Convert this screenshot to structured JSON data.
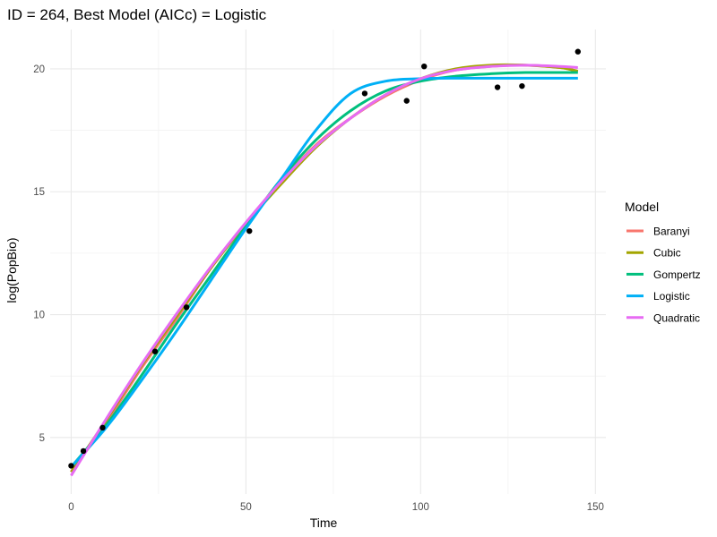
{
  "chart_data": {
    "type": "line",
    "title": "ID = 264, Best Model (AICc) = Logistic",
    "xlabel": "Time",
    "ylabel": "log(PopBio)",
    "xlim": [
      -6,
      153
    ],
    "ylim": [
      2.7,
      21.6
    ],
    "x_ticks": [
      0,
      50,
      100,
      150
    ],
    "y_ticks": [
      5,
      10,
      15,
      20
    ],
    "grid": true,
    "legend": {
      "title": "Model",
      "position": "right"
    },
    "points": {
      "x": [
        0,
        3.5,
        9,
        24,
        33,
        51,
        84,
        96,
        101,
        122,
        129,
        145
      ],
      "y": [
        3.85,
        4.45,
        5.4,
        8.5,
        10.3,
        13.4,
        19.0,
        18.7,
        20.1,
        19.25,
        19.3,
        20.7
      ],
      "color": "#000000"
    },
    "series": [
      {
        "name": "Baranyi",
        "color": "#F8766D",
        "x": [
          0,
          10,
          20,
          30,
          40,
          50,
          60,
          70,
          80,
          90,
          100,
          110,
          120,
          130,
          140,
          145
        ],
        "y": [
          3.6,
          5.6,
          7.8,
          9.8,
          11.9,
          13.7,
          15.4,
          16.9,
          18.0,
          18.9,
          19.55,
          19.95,
          20.1,
          20.15,
          20.05,
          19.9
        ]
      },
      {
        "name": "Cubic",
        "color": "#A3A500",
        "x": [
          0,
          10,
          20,
          30,
          40,
          50,
          60,
          70,
          80,
          90,
          100,
          110,
          120,
          130,
          140,
          145
        ],
        "y": [
          3.6,
          5.7,
          7.9,
          9.9,
          11.9,
          13.7,
          15.3,
          16.8,
          18.0,
          18.95,
          19.6,
          20.0,
          20.15,
          20.15,
          20.05,
          19.9
        ]
      },
      {
        "name": "Gompertz",
        "color": "#00BF7D",
        "x": [
          0,
          10,
          20,
          30,
          40,
          50,
          60,
          70,
          80,
          90,
          100,
          110,
          120,
          130,
          140,
          145
        ],
        "y": [
          3.8,
          5.5,
          7.5,
          9.6,
          11.6,
          13.6,
          15.5,
          17.1,
          18.3,
          19.1,
          19.5,
          19.7,
          19.8,
          19.85,
          19.85,
          19.85
        ]
      },
      {
        "name": "Logistic",
        "color": "#00B0F6",
        "x": [
          0,
          10,
          20,
          30,
          40,
          50,
          60,
          70,
          80,
          90,
          100,
          110,
          120,
          130,
          140,
          145
        ],
        "y": [
          3.8,
          5.4,
          7.3,
          9.3,
          11.4,
          13.5,
          15.5,
          17.5,
          19.0,
          19.5,
          19.6,
          19.62,
          19.62,
          19.62,
          19.62,
          19.62
        ]
      },
      {
        "name": "Quadratic",
        "color": "#E76BF3",
        "x": [
          0,
          10,
          20,
          30,
          40,
          50,
          60,
          70,
          80,
          90,
          100,
          110,
          120,
          130,
          140,
          145
        ],
        "y": [
          3.45,
          5.75,
          7.95,
          10.0,
          11.95,
          13.75,
          15.4,
          16.85,
          18.0,
          18.95,
          19.6,
          19.95,
          20.1,
          20.15,
          20.1,
          20.05
        ]
      }
    ]
  }
}
